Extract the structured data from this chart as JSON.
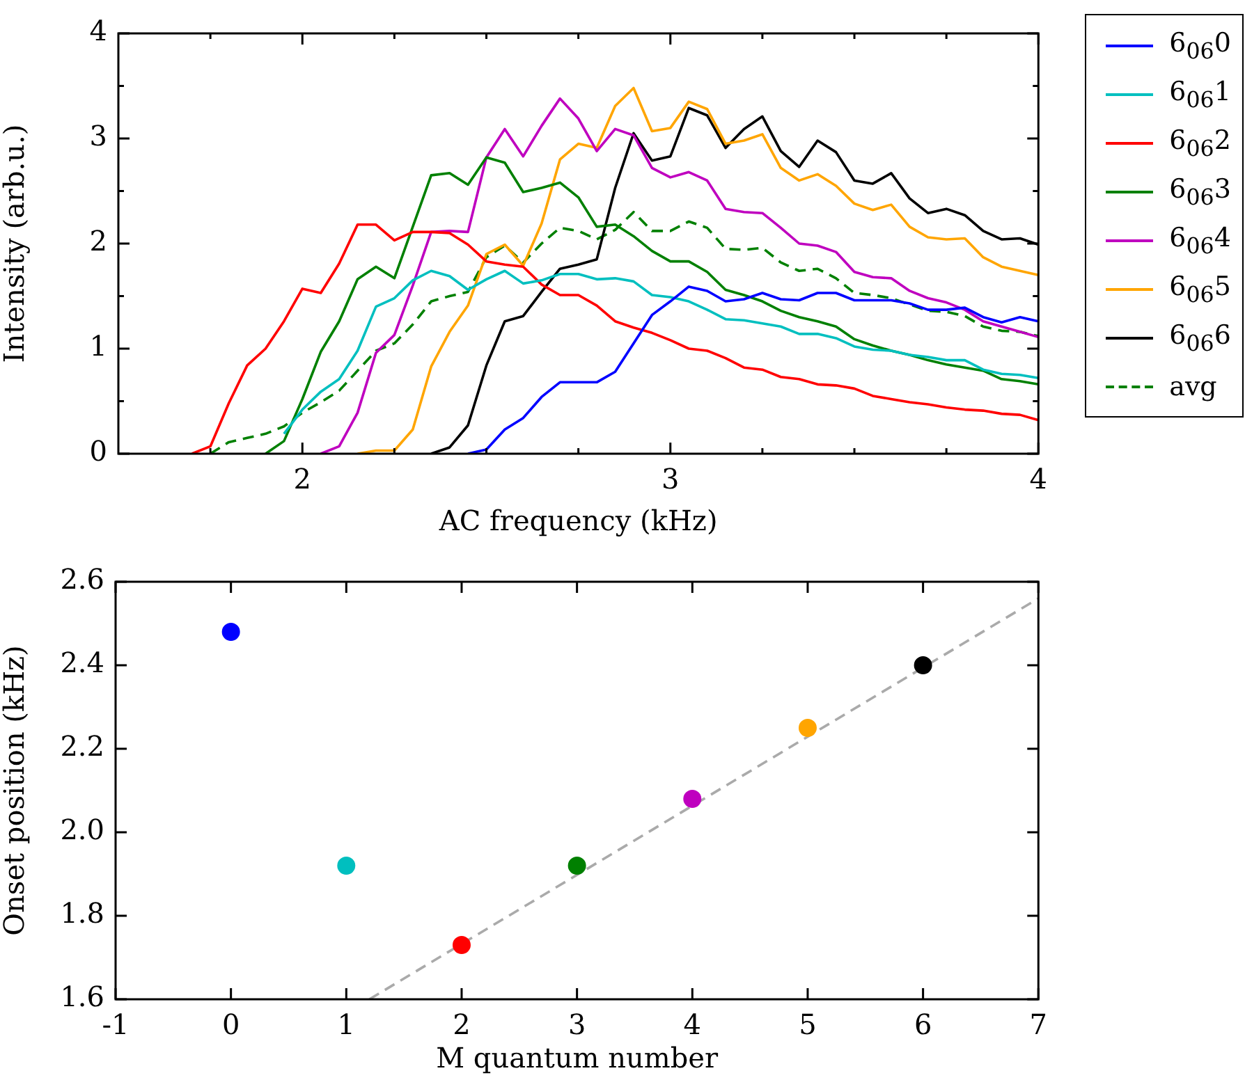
{
  "chart_data": [
    {
      "type": "line",
      "xlabel": "AC frequency (kHz)",
      "ylabel": "Intensity (arb.u.)",
      "xlim": [
        1.5,
        4
      ],
      "ylim": [
        0,
        4
      ],
      "xticks": [
        {
          "value": 1.75,
          "label": null
        },
        2,
        {
          "value": 2.25,
          "label": null
        },
        {
          "value": 2.5,
          "label": null
        },
        {
          "value": 2.75,
          "label": null
        },
        3,
        {
          "value": 3.25,
          "label": null
        },
        {
          "value": 3.5,
          "label": null
        },
        {
          "value": 3.75,
          "label": null
        },
        4
      ],
      "yticks": [
        0,
        {
          "value": 0.5,
          "label": null
        },
        1,
        {
          "value": 1.5,
          "label": null
        },
        2,
        {
          "value": 2.5,
          "label": null
        },
        3,
        {
          "value": 3.5,
          "label": null
        },
        4
      ],
      "grid": false,
      "legend": "right",
      "marker": "none",
      "line_style": "solid",
      "x": [
        1.7,
        1.75,
        1.8,
        1.85,
        1.9,
        1.95,
        2.0,
        2.05,
        2.1,
        2.15,
        2.2,
        2.25,
        2.3,
        2.35,
        2.4,
        2.45,
        2.5,
        2.55,
        2.6,
        2.65,
        2.7,
        2.75,
        2.8,
        2.85,
        2.9,
        2.95,
        3.0,
        3.05,
        3.1,
        3.15,
        3.2,
        3.25,
        3.3,
        3.35,
        3.4,
        3.45,
        3.5,
        3.55,
        3.6,
        3.65,
        3.7,
        3.75,
        3.8,
        3.85,
        3.9,
        3.95,
        4.0
      ],
      "series": [
        {
          "name": "6$_{06}$0",
          "color": "#0000ff",
          "values": [
            null,
            null,
            null,
            null,
            null,
            null,
            null,
            null,
            null,
            null,
            null,
            null,
            null,
            null,
            null,
            0,
            0.04,
            0.23,
            0.34,
            0.54,
            0.68,
            0.68,
            0.68,
            0.78,
            1.05,
            1.32,
            1.45,
            1.59,
            1.55,
            1.45,
            1.47,
            1.53,
            1.47,
            1.46,
            1.53,
            1.53,
            1.46,
            1.46,
            1.46,
            1.43,
            1.37,
            1.37,
            1.39,
            1.3,
            1.25,
            1.3,
            1.26
          ]
        },
        {
          "name": "6$_{06}$1",
          "color": "#00bfbf",
          "values": [
            null,
            null,
            null,
            null,
            null,
            0.19,
            0.42,
            0.59,
            0.71,
            0.98,
            1.4,
            1.48,
            1.65,
            1.74,
            1.69,
            1.56,
            1.66,
            1.74,
            1.62,
            1.65,
            1.71,
            1.71,
            1.66,
            1.67,
            1.64,
            1.51,
            1.49,
            1.45,
            1.37,
            1.28,
            1.27,
            1.24,
            1.21,
            1.14,
            1.14,
            1.1,
            1.02,
            0.99,
            0.98,
            0.94,
            0.92,
            0.89,
            0.89,
            0.8,
            0.76,
            0.75,
            0.72
          ]
        },
        {
          "name": "6$_{06}$2",
          "color": "#ff0000",
          "values": [
            0,
            0.07,
            0.48,
            0.84,
            1.0,
            1.26,
            1.57,
            1.53,
            1.81,
            2.18,
            2.18,
            2.03,
            2.11,
            2.11,
            2.1,
            1.99,
            1.83,
            1.8,
            1.78,
            1.61,
            1.51,
            1.51,
            1.41,
            1.26,
            1.2,
            1.15,
            1.08,
            1.0,
            0.98,
            0.91,
            0.82,
            0.8,
            0.73,
            0.71,
            0.66,
            0.65,
            0.62,
            0.55,
            0.52,
            0.49,
            0.47,
            0.44,
            0.42,
            0.41,
            0.38,
            0.37,
            0.32
          ]
        },
        {
          "name": "6$_{06}$3",
          "color": "#008000",
          "values": [
            null,
            null,
            null,
            null,
            0,
            0.12,
            0.52,
            0.97,
            1.26,
            1.66,
            1.78,
            1.67,
            2.16,
            2.65,
            2.67,
            2.56,
            2.82,
            2.77,
            2.49,
            2.53,
            2.58,
            2.44,
            2.16,
            2.18,
            2.07,
            1.93,
            1.83,
            1.83,
            1.73,
            1.56,
            1.51,
            1.45,
            1.36,
            1.3,
            1.26,
            1.21,
            1.09,
            1.03,
            0.98,
            0.94,
            0.89,
            0.85,
            0.82,
            0.79,
            0.71,
            0.69,
            0.66
          ]
        },
        {
          "name": "6$_{06}$4",
          "color": "#bf00bf",
          "values": [
            null,
            null,
            null,
            null,
            null,
            null,
            null,
            0,
            0.07,
            0.39,
            0.96,
            1.13,
            1.6,
            2.11,
            2.12,
            2.11,
            2.82,
            3.09,
            2.83,
            3.12,
            3.38,
            3.19,
            2.88,
            3.09,
            3.03,
            2.72,
            2.63,
            2.68,
            2.6,
            2.33,
            2.3,
            2.29,
            2.15,
            2.0,
            1.98,
            1.92,
            1.73,
            1.68,
            1.67,
            1.55,
            1.48,
            1.44,
            1.37,
            1.26,
            1.21,
            1.16,
            1.11
          ]
        },
        {
          "name": "6$_{06}$5",
          "color": "#ffa500",
          "values": [
            null,
            null,
            null,
            null,
            null,
            null,
            null,
            null,
            null,
            0,
            0.03,
            0.03,
            0.23,
            0.83,
            1.16,
            1.41,
            1.9,
            1.99,
            1.79,
            2.19,
            2.8,
            2.95,
            2.91,
            3.31,
            3.48,
            3.07,
            3.1,
            3.35,
            3.28,
            2.95,
            2.98,
            3.04,
            2.72,
            2.6,
            2.66,
            2.55,
            2.38,
            2.32,
            2.37,
            2.16,
            2.06,
            2.04,
            2.05,
            1.87,
            1.78,
            1.74,
            1.7
          ]
        },
        {
          "name": "6$_{06}$6",
          "color": "#000000",
          "values": [
            null,
            null,
            null,
            null,
            null,
            null,
            null,
            null,
            null,
            null,
            null,
            null,
            null,
            0,
            0.06,
            0.27,
            0.84,
            1.26,
            1.31,
            1.54,
            1.76,
            1.8,
            1.85,
            2.53,
            3.05,
            2.79,
            2.83,
            3.29,
            3.22,
            2.91,
            3.09,
            3.21,
            2.88,
            2.73,
            2.98,
            2.87,
            2.6,
            2.57,
            2.67,
            2.43,
            2.29,
            2.33,
            2.27,
            2.12,
            2.04,
            2.05,
            1.99
          ]
        },
        {
          "name": "avg",
          "color": "#008000",
          "line_style": "dashed",
          "values": [
            null,
            0,
            0.11,
            0.15,
            0.19,
            0.26,
            0.39,
            0.49,
            0.6,
            0.79,
            0.98,
            1.05,
            1.23,
            1.45,
            1.5,
            1.54,
            1.87,
            1.98,
            1.82,
            2.0,
            2.15,
            2.12,
            2.04,
            2.13,
            2.3,
            2.12,
            2.12,
            2.21,
            2.15,
            1.95,
            1.94,
            1.96,
            1.82,
            1.74,
            1.76,
            1.67,
            1.53,
            1.51,
            1.48,
            1.42,
            1.36,
            1.35,
            1.31,
            1.21,
            1.17,
            1.16,
            1.12
          ]
        }
      ]
    },
    {
      "type": "scatter",
      "xlabel": "M quantum number",
      "ylabel": "Onset position (kHz)",
      "xlim": [
        -1,
        7
      ],
      "ylim": [
        1.6,
        2.6
      ],
      "xticks": [
        -1,
        0,
        1,
        2,
        3,
        4,
        5,
        6,
        7
      ],
      "yticks": [
        1.6,
        1.8,
        {
          "value": 2,
          "label": "2.0"
        },
        2.2,
        2.4,
        2.6
      ],
      "grid": false,
      "marker": "circle",
      "series": [
        {
          "x": [
            0,
            1,
            2,
            3,
            4,
            5,
            6
          ],
          "values": [
            2.48,
            1.92,
            1.73,
            1.92,
            2.08,
            2.25,
            2.4
          ],
          "colors": [
            "#0000ff",
            "#00bfbf",
            "#ff0000",
            "#008000",
            "#bf00bf",
            "#ffa500",
            "#000000"
          ]
        },
        {
          "type": "line",
          "x": [
            1.2,
            7
          ],
          "values": [
            1.6,
            2.56
          ],
          "color": "#aaaaaa",
          "line_style": "dashed",
          "marker": "none"
        }
      ]
    }
  ]
}
